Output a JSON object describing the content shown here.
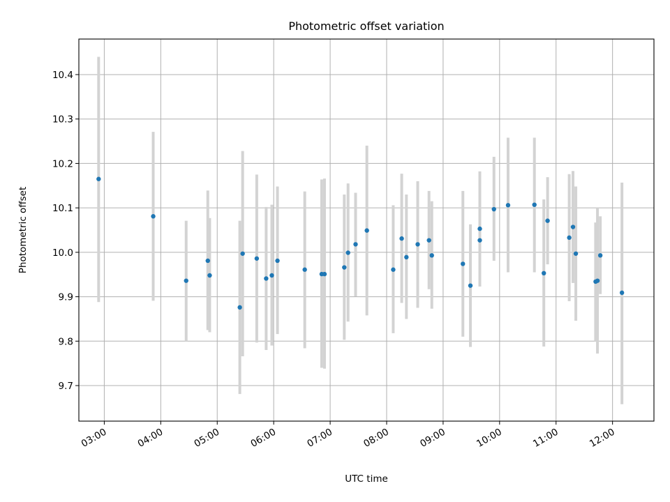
{
  "chart_data": {
    "type": "scatter",
    "title": "Photometric offset variation",
    "xlabel": "UTC time",
    "ylabel": "Photometric offset",
    "x_ticks": [
      "03:00",
      "04:00",
      "05:00",
      "06:00",
      "07:00",
      "08:00",
      "09:00",
      "10:00",
      "11:00",
      "12:00"
    ],
    "y_ticks": [
      9.7,
      9.8,
      9.9,
      10.0,
      10.1,
      10.2,
      10.3,
      10.4
    ],
    "xlim": [
      "02:33",
      "12:44"
    ],
    "ylim": [
      9.62,
      10.48
    ],
    "grid": true,
    "colors": {
      "point": "#1f77b4",
      "errorbar": "#d3d3d3"
    },
    "series": [
      {
        "points": [
          {
            "x": "02:54",
            "y": 10.165,
            "lo": 9.888,
            "hi": 10.44
          },
          {
            "x": "03:52",
            "y": 10.081,
            "lo": 9.891,
            "hi": 10.271
          },
          {
            "x": "04:27",
            "y": 9.936,
            "lo": 9.8,
            "hi": 10.071
          },
          {
            "x": "04:50",
            "y": 9.981,
            "lo": 9.825,
            "hi": 10.139
          },
          {
            "x": "04:52",
            "y": 9.948,
            "lo": 9.82,
            "hi": 10.077
          },
          {
            "x": "05:24",
            "y": 9.876,
            "lo": 9.681,
            "hi": 10.071
          },
          {
            "x": "05:27",
            "y": 9.997,
            "lo": 9.766,
            "hi": 10.228
          },
          {
            "x": "05:42",
            "y": 9.986,
            "lo": 9.797,
            "hi": 10.175
          },
          {
            "x": "05:52",
            "y": 9.941,
            "lo": 9.78,
            "hi": 10.102
          },
          {
            "x": "05:58",
            "y": 9.948,
            "lo": 9.79,
            "hi": 10.107
          },
          {
            "x": "06:04",
            "y": 9.981,
            "lo": 9.816,
            "hi": 10.148
          },
          {
            "x": "06:33",
            "y": 9.961,
            "lo": 9.784,
            "hi": 10.137
          },
          {
            "x": "06:51",
            "y": 9.951,
            "lo": 9.74,
            "hi": 10.164
          },
          {
            "x": "06:54",
            "y": 9.951,
            "lo": 9.738,
            "hi": 10.166
          },
          {
            "x": "07:15",
            "y": 9.966,
            "lo": 9.803,
            "hi": 10.13
          },
          {
            "x": "07:19",
            "y": 9.999,
            "lo": 9.844,
            "hi": 10.155
          },
          {
            "x": "07:27",
            "y": 10.018,
            "lo": 9.901,
            "hi": 10.134
          },
          {
            "x": "07:39",
            "y": 10.049,
            "lo": 9.858,
            "hi": 10.24
          },
          {
            "x": "08:07",
            "y": 9.961,
            "lo": 9.818,
            "hi": 10.106
          },
          {
            "x": "08:16",
            "y": 10.031,
            "lo": 9.886,
            "hi": 10.177
          },
          {
            "x": "08:21",
            "y": 9.989,
            "lo": 9.85,
            "hi": 10.13
          },
          {
            "x": "08:33",
            "y": 10.018,
            "lo": 9.875,
            "hi": 10.16
          },
          {
            "x": "08:45",
            "y": 10.027,
            "lo": 9.917,
            "hi": 10.138
          },
          {
            "x": "08:48",
            "y": 9.993,
            "lo": 9.873,
            "hi": 10.115
          },
          {
            "x": "09:21",
            "y": 9.974,
            "lo": 9.81,
            "hi": 10.138
          },
          {
            "x": "09:29",
            "y": 9.925,
            "lo": 9.787,
            "hi": 10.063
          },
          {
            "x": "09:39",
            "y": 10.053,
            "lo": 9.923,
            "hi": 10.182
          },
          {
            "x": "09:39",
            "y": 10.027,
            "lo": 9.923,
            "hi": 10.182
          },
          {
            "x": "09:54",
            "y": 10.097,
            "lo": 9.981,
            "hi": 10.215
          },
          {
            "x": "10:09",
            "y": 10.106,
            "lo": 9.955,
            "hi": 10.258
          },
          {
            "x": "10:37",
            "y": 10.107,
            "lo": 9.955,
            "hi": 10.258
          },
          {
            "x": "10:47",
            "y": 9.953,
            "lo": 9.788,
            "hi": 10.119
          },
          {
            "x": "10:51",
            "y": 10.071,
            "lo": 9.973,
            "hi": 10.169
          },
          {
            "x": "11:14",
            "y": 10.033,
            "lo": 9.89,
            "hi": 10.176
          },
          {
            "x": "11:18",
            "y": 10.057,
            "lo": 9.931,
            "hi": 10.183
          },
          {
            "x": "11:21",
            "y": 9.997,
            "lo": 9.846,
            "hi": 10.148
          },
          {
            "x": "11:42",
            "y": 9.934,
            "lo": 9.8,
            "hi": 10.067
          },
          {
            "x": "11:44",
            "y": 9.936,
            "lo": 9.772,
            "hi": 10.1
          },
          {
            "x": "11:47",
            "y": 9.993,
            "lo": 9.906,
            "hi": 10.081
          },
          {
            "x": "12:10",
            "y": 9.909,
            "lo": 9.658,
            "hi": 10.157
          }
        ]
      }
    ]
  }
}
